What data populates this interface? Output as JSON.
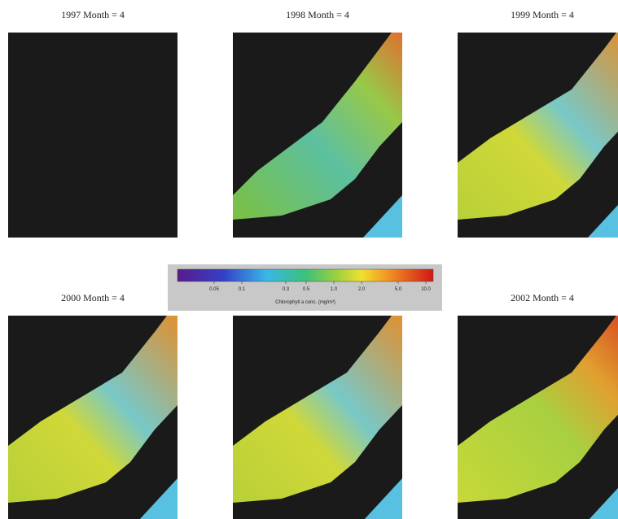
{
  "panel_titles": [
    "1997 Month = 4",
    "1998 Month = 4",
    "1999 Month = 4",
    "2000 Month = 4",
    null,
    "2002 Month = 4"
  ],
  "colorbar": {
    "label": "Chlorophyll a conc. (mg/m³)",
    "log": true,
    "lim": [
      0.02,
      12
    ],
    "ticks": [
      0.05,
      0.1,
      0.3,
      0.5,
      {
        "value": 1,
        "label": "1.0"
      },
      {
        "value": 2,
        "label": "2.0"
      },
      {
        "value": 5,
        "label": "5.0"
      },
      {
        "value": 10,
        "label": "10.0"
      }
    ]
  }
}
